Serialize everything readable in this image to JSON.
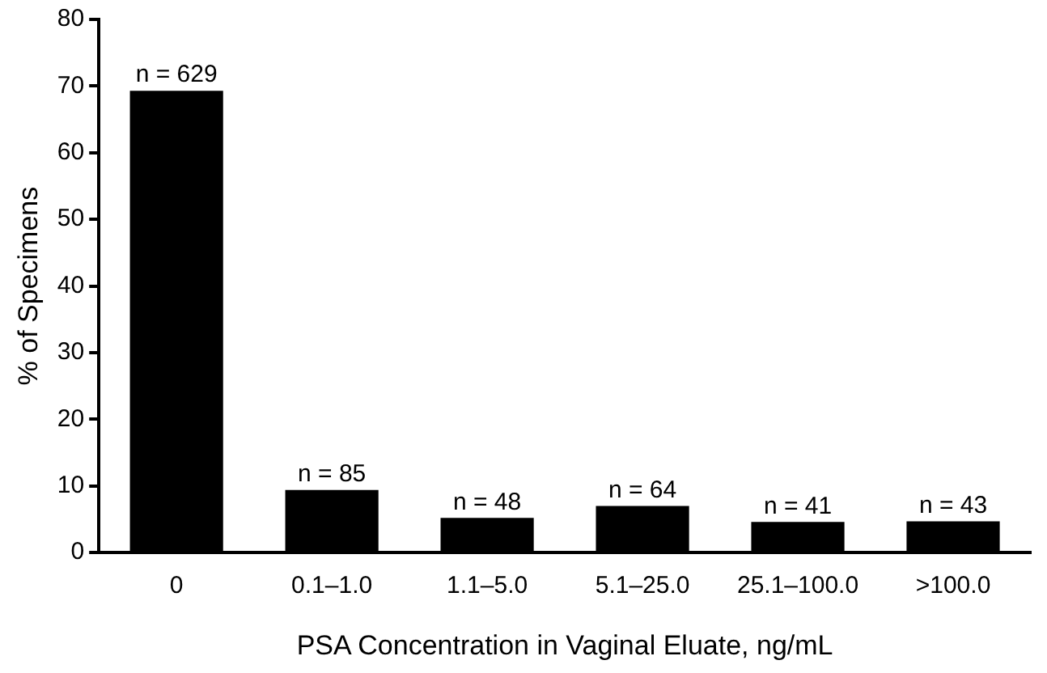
{
  "chart_data": {
    "type": "bar",
    "xlabel": "PSA Concentration in Vaginal Eluate, ng/mL",
    "ylabel": "% of Specimens",
    "categories": [
      "0",
      "0.1–1.0",
      "1.1–5.0",
      "5.1–25.0",
      "25.1–100.0",
      ">100.0"
    ],
    "values": [
      69.3,
      9.4,
      5.2,
      7.0,
      4.6,
      4.7
    ],
    "annotations": [
      {
        "text": "n = 629",
        "x": "0",
        "y": 69.3
      },
      {
        "text": "n = 85",
        "x": "0.1–1.0",
        "y": 9.4
      },
      {
        "text": "n = 48",
        "x": "1.1–5.0",
        "y": 5.2
      },
      {
        "text": "n = 64",
        "x": "5.1–25.0",
        "y": 7.0
      },
      {
        "text": "n = 41",
        "x": "25.1–100.0",
        "y": 4.6
      },
      {
        "text": "n = 43",
        "x": ">100.0",
        "y": 4.7
      }
    ],
    "color": "#000000",
    "ylim": [
      0,
      80
    ],
    "yticks": [
      0,
      10,
      20,
      30,
      40,
      50,
      60,
      70,
      80
    ],
    "grid": false,
    "legend": false
  }
}
